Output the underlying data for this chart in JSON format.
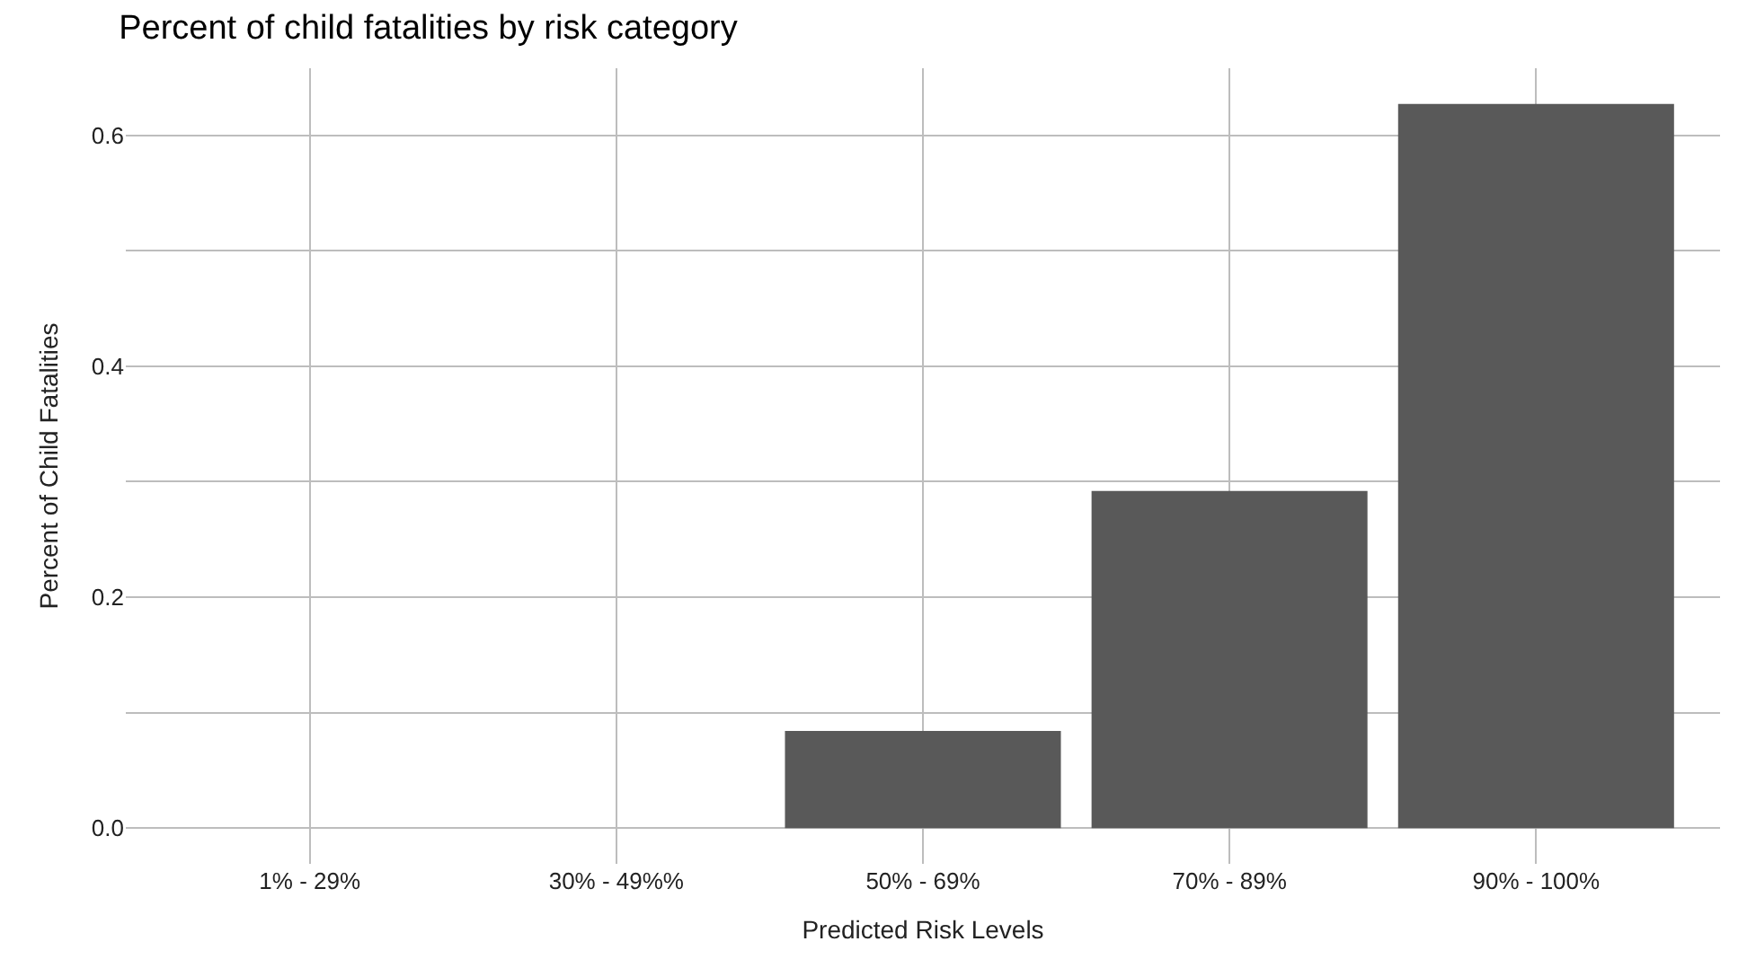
{
  "chart_data": {
    "type": "bar",
    "title": "Percent of child fatalities by risk category",
    "xlabel": "Predicted Risk Levels",
    "ylabel": "Percent of Child Fatalities",
    "categories": [
      "1% - 29%",
      "30% - 49%%",
      "50% - 69%",
      "70% - 89%",
      "90% - 100%"
    ],
    "values": [
      0,
      0,
      0.084,
      0.292,
      0.627
    ],
    "color": "#595959",
    "ylim": [
      -0.031,
      0.658
    ],
    "yticks": [
      {
        "value": 0,
        "label": "0.0"
      },
      {
        "value": 0.1,
        "label": null
      },
      0.2,
      {
        "value": 0.3,
        "label": null
      },
      0.4,
      {
        "value": 0.5,
        "label": null
      },
      0.6
    ],
    "grid": true
  }
}
